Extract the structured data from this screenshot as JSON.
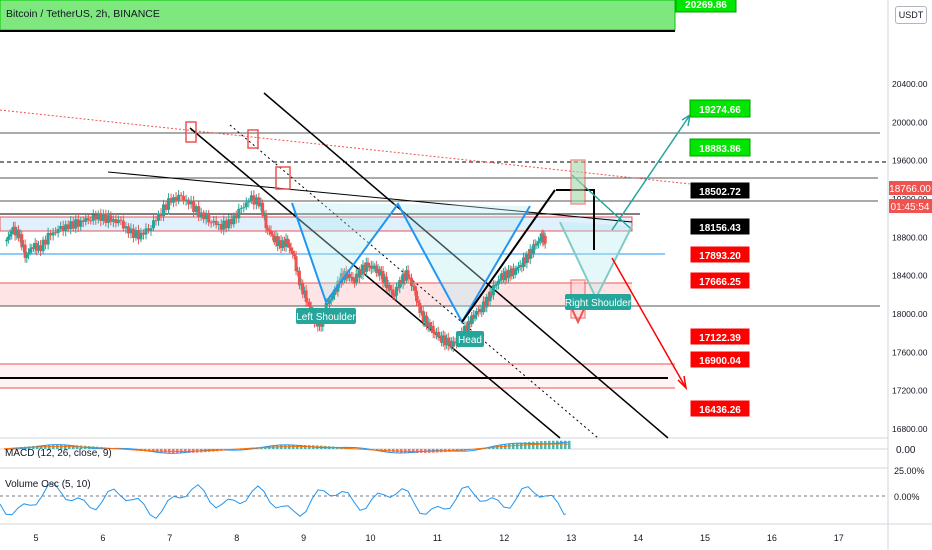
{
  "header": {
    "title": "Bitcoin / TetherUS, 2h, BINANCE",
    "currency": "USDT"
  },
  "price_axis": {
    "ticks": [
      "20400.00",
      "20000.00",
      "19600.00",
      "19200.00",
      "18800.00",
      "18400.00",
      "18000.00",
      "17600.00",
      "17200.00",
      "16800.00"
    ],
    "current_price": "18766.00",
    "countdown": "01:45:54"
  },
  "level_labels": [
    {
      "text": "20269.86",
      "style": "green"
    },
    {
      "text": "19274.66",
      "style": "green"
    },
    {
      "text": "18883.86",
      "style": "green"
    },
    {
      "text": "18502.72",
      "style": "black"
    },
    {
      "text": "18156.43",
      "style": "black"
    },
    {
      "text": "17893.20",
      "style": "red"
    },
    {
      "text": "17666.25",
      "style": "red"
    },
    {
      "text": "17122.39",
      "style": "red"
    },
    {
      "text": "16900.04",
      "style": "red"
    },
    {
      "text": "16436.26",
      "style": "red"
    }
  ],
  "annotations": {
    "left_shoulder": "Left Shoulder",
    "head": "Head",
    "right_shoulder": "Right Shoulder"
  },
  "macd": {
    "label": "MACD (12, 26, close, 9)",
    "value": "0.00"
  },
  "volume_osc": {
    "label": "Volume Osc (5, 10)",
    "tick_top": "25.00%",
    "tick_mid": "0.00%"
  },
  "time_axis": [
    "5",
    "6",
    "7",
    "8",
    "9",
    "10",
    "11",
    "12",
    "13",
    "14",
    "15",
    "16",
    "17"
  ],
  "colors": {
    "up": "#26a69a",
    "down": "#ef5350",
    "green_label": "#00e600",
    "red_label": "#ff0000",
    "black_label": "#000000",
    "pattern": "#2196f3"
  },
  "chart_data": {
    "type": "candlestick",
    "title": "Bitcoin / TetherUS, 2h, BINANCE",
    "ylim": [
      16400,
      20500
    ],
    "price_levels": [
      20269.86,
      19274.66,
      18883.86,
      18502.72,
      18156.43,
      17893.2,
      17666.25,
      17122.39,
      16900.04,
      16436.26
    ],
    "current_price": 18766.0,
    "close_path": [
      [
        4.55,
        18760
      ],
      [
        4.65,
        18880
      ],
      [
        4.75,
        18820
      ],
      [
        4.85,
        18600
      ],
      [
        4.95,
        18720
      ],
      [
        5.05,
        18680
      ],
      [
        5.2,
        18820
      ],
      [
        5.35,
        18880
      ],
      [
        5.5,
        18920
      ],
      [
        5.65,
        18960
      ],
      [
        5.8,
        19000
      ],
      [
        5.95,
        19020
      ],
      [
        6.1,
        18980
      ],
      [
        6.25,
        18960
      ],
      [
        6.4,
        18850
      ],
      [
        6.55,
        18820
      ],
      [
        6.7,
        18900
      ],
      [
        6.85,
        19050
      ],
      [
        7.0,
        19180
      ],
      [
        7.15,
        19220
      ],
      [
        7.3,
        19150
      ],
      [
        7.45,
        19040
      ],
      [
        7.6,
        18980
      ],
      [
        7.75,
        18920
      ],
      [
        7.9,
        18950
      ],
      [
        8.05,
        19080
      ],
      [
        8.2,
        19200
      ],
      [
        8.35,
        19160
      ],
      [
        8.45,
        18900
      ],
      [
        8.55,
        18800
      ],
      [
        8.65,
        18720
      ],
      [
        8.75,
        18750
      ],
      [
        8.85,
        18600
      ],
      [
        8.95,
        18300
      ],
      [
        9.05,
        18150
      ],
      [
        9.15,
        17950
      ],
      [
        9.25,
        17880
      ],
      [
        9.35,
        18100
      ],
      [
        9.45,
        18200
      ],
      [
        9.55,
        18380
      ],
      [
        9.65,
        18420
      ],
      [
        9.75,
        18350
      ],
      [
        9.85,
        18450
      ],
      [
        9.95,
        18500
      ],
      [
        10.05,
        18480
      ],
      [
        10.15,
        18420
      ],
      [
        10.25,
        18300
      ],
      [
        10.35,
        18200
      ],
      [
        10.45,
        18350
      ],
      [
        10.55,
        18420
      ],
      [
        10.65,
        18250
      ],
      [
        10.75,
        18000
      ],
      [
        10.85,
        17900
      ],
      [
        10.95,
        17820
      ],
      [
        11.05,
        17750
      ],
      [
        11.15,
        17700
      ],
      [
        11.25,
        17680
      ],
      [
        11.35,
        17760
      ],
      [
        11.45,
        17880
      ],
      [
        11.55,
        18000
      ],
      [
        11.65,
        18050
      ],
      [
        11.75,
        18150
      ],
      [
        11.85,
        18280
      ],
      [
        11.95,
        18380
      ],
      [
        12.05,
        18420
      ],
      [
        12.15,
        18450
      ],
      [
        12.25,
        18520
      ],
      [
        12.35,
        18600
      ],
      [
        12.45,
        18700
      ],
      [
        12.55,
        18800
      ],
      [
        12.62,
        18766
      ]
    ],
    "macd_range": [
      -1,
      1
    ],
    "volume_osc_range": [
      -40,
      30
    ]
  }
}
